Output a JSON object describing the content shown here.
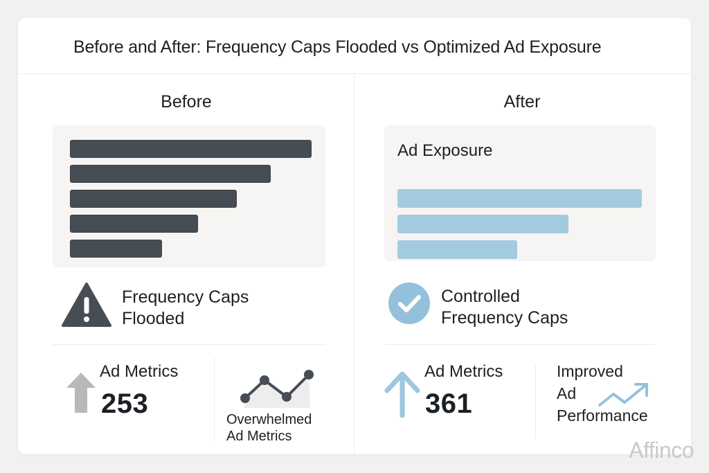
{
  "title": "Before and After: Frequency Caps Flooded vs Optimized Ad Exposure",
  "before": {
    "heading": "Before",
    "bars": [
      1.0,
      0.83,
      0.69,
      0.53,
      0.38
    ],
    "status_line1": "Frequency Caps",
    "status_line2": "Flooded",
    "status_icon": "warning-icon",
    "metric_label": "Ad Metrics",
    "metric_value": "253",
    "metric_icon": "arrow-up-icon",
    "trend_label_line1": "Overwhelmed",
    "trend_label_line2": "Ad Metrics",
    "trend_icon": "line-trend-icon",
    "colors": {
      "bar": "#474d54",
      "icon": "#474d54",
      "arrow": "#b8b8b8"
    }
  },
  "after": {
    "heading": "After",
    "panel_label": "Ad Exposure",
    "bars": [
      1.0,
      0.7,
      0.49
    ],
    "status_line1": "Controlled",
    "status_line2": "Frequency Caps",
    "status_icon": "check-circle-icon",
    "metric_label": "Ad Metrics",
    "metric_value": "361",
    "metric_icon": "arrow-up-icon",
    "perf_line1": "Improved",
    "perf_line2": "Ad",
    "perf_line3": "Performance",
    "perf_icon": "trend-up-icon",
    "colors": {
      "bar": "#a3cbe0",
      "icon": "#93c1dc",
      "arrow": "#9cc7df"
    }
  },
  "watermark": "Affinco"
}
